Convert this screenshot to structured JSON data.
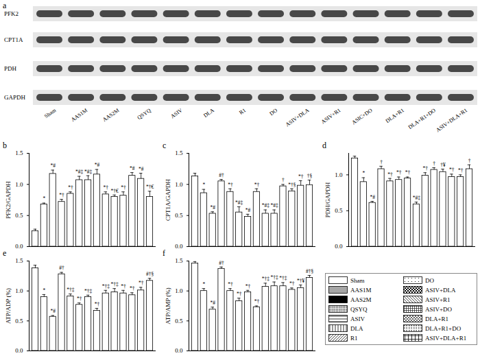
{
  "blot": {
    "label": "a",
    "proteins": [
      "PFK2",
      "CPT1A",
      "PDH",
      "GAPDH"
    ],
    "lanes": [
      "Sham",
      "AAS1M",
      "AAS2M",
      "QSYQ",
      "ASIV",
      "DLA",
      "R1",
      "DO",
      "ASIV+DLA",
      "ASIV+R1",
      "ASIC+DO",
      "DLA+R1",
      "DLA+R1+DO",
      "ASIV+DLA+R1"
    ]
  },
  "chart_data": [
    {
      "type": "bar",
      "title": "b",
      "y_label": "PFK2/GAPDH",
      "tick_labels": "y",
      "categories": [
        "Sham",
        "AAS1M",
        "AAS2M",
        "QSYQ",
        "ASIV",
        "DLA",
        "R1",
        "DO",
        "ASIV+DLA",
        "ASIV+R1",
        "ASIV+DO",
        "DLA+R1",
        "DLA+R1+DO",
        "ASIV+DLA+R1"
      ],
      "colors": [
        "#ffffff",
        "#a6a6a6",
        "#000000",
        "#ffffff",
        "#ffffff",
        "#ffffff",
        "#ffffff",
        "#ffffff",
        "#ffffff",
        "#ffffff",
        "#ffffff",
        "#ffffff",
        "#ffffff",
        "#ffffff"
      ],
      "values": [
        0.25,
        0.68,
        1.17,
        0.72,
        0.85,
        1.07,
        1.07,
        1.16,
        0.84,
        0.8,
        0.82,
        1.14,
        1.09,
        0.8
      ],
      "errors": [
        0.03,
        0.02,
        0.06,
        0.04,
        0.03,
        0.06,
        0.07,
        0.08,
        0.04,
        0.03,
        0.06,
        0.05,
        0.09,
        0.09
      ],
      "annotations": [
        null,
        "*",
        "*#",
        "*†",
        "*†",
        "*#‡",
        "*#‡",
        "*#",
        "*†",
        "*†€",
        "*†",
        "*#",
        "*#",
        "*†€"
      ],
      "ylim": [
        0,
        1.5
      ],
      "yticks": [
        {
          "value": 0,
          "label": "0.0"
        },
        {
          "value": 0.5,
          "label": "0.5"
        },
        {
          "value": 1,
          "label": "1.0"
        },
        {
          "value": 1.5,
          "label": "1.5"
        }
      ]
    },
    {
      "type": "bar",
      "title": "c",
      "y_label": "CPT1A/GAPDH",
      "tick_labels": "y",
      "categories": [
        "Sham",
        "AAS1M",
        "AAS2M",
        "QSYQ",
        "ASIV",
        "DLA",
        "R1",
        "DO",
        "ASIV+DLA",
        "ASIV+R1",
        "ASIV+DO",
        "DLA+R1",
        "DLA+R1+DO",
        "ASIV+DLA+R1"
      ],
      "colors": [
        "#ffffff",
        "#a6a6a6",
        "#000000",
        "#ffffff",
        "#ffffff",
        "#ffffff",
        "#ffffff",
        "#ffffff",
        "#ffffff",
        "#ffffff",
        "#ffffff",
        "#ffffff",
        "#ffffff",
        "#ffffff"
      ],
      "values": [
        1.13,
        0.86,
        0.53,
        1.05,
        0.88,
        0.55,
        0.48,
        0.88,
        0.53,
        0.53,
        0.97,
        0.89,
        0.98,
        0.99
      ],
      "errors": [
        0.05,
        0.06,
        0.03,
        0.03,
        0.05,
        0.09,
        0.04,
        0.05,
        0.06,
        0.06,
        0.03,
        0.04,
        0.08,
        0.08
      ],
      "annotations": [
        null,
        "*",
        "*#",
        "#†",
        "*†",
        "*#‡",
        "*#",
        "*†",
        "*#‡",
        "*#‡",
        "†",
        "*†§",
        "*†",
        "†§"
      ],
      "ylim": [
        0,
        1.5
      ],
      "yticks": [
        {
          "value": 0,
          "label": "0.0"
        },
        {
          "value": 0.5,
          "label": "0.5"
        },
        {
          "value": 1,
          "label": "1.0"
        },
        {
          "value": 1.5,
          "label": "1.5"
        }
      ]
    },
    {
      "type": "bar",
      "title": "d",
      "y_label": "PDH/GAPDH",
      "tick_labels": "y",
      "categories": [
        "Sham",
        "AAS1M",
        "AAS2M",
        "QSYQ",
        "ASIV",
        "DLA",
        "R1",
        "DO",
        "ASIV+DLA",
        "ASIV+R1",
        "ASIV+DO",
        "DLA+R1",
        "DLA+R1+DO",
        "ASIV+DLA+R1"
      ],
      "colors": [
        "#ffffff",
        "#a6a6a6",
        "#000000",
        "#ffffff",
        "#ffffff",
        "#ffffff",
        "#ffffff",
        "#ffffff",
        "#ffffff",
        "#ffffff",
        "#ffffff",
        "#ffffff",
        "#ffffff",
        "#ffffff"
      ],
      "values": [
        1.23,
        0.9,
        0.61,
        1.08,
        0.91,
        0.93,
        0.95,
        0.59,
        0.99,
        1.07,
        1.04,
        0.97,
        0.97,
        1.08
      ],
      "errors": [
        0.03,
        0.06,
        0.02,
        0.04,
        0.04,
        0.04,
        0.02,
        0.03,
        0.04,
        0.03,
        0.04,
        0.04,
        0.03,
        0.06
      ],
      "annotations": [
        null,
        "*",
        "*#",
        "†",
        "*†",
        "*†",
        "*†",
        "*#‡",
        "*†",
        "†",
        "†¥",
        "*†",
        "*†",
        "†"
      ],
      "ylim": [
        0,
        1.3
      ],
      "yticks": [
        {
          "value": 0,
          "label": "0.0"
        },
        {
          "value": 0.5,
          "label": "0.5"
        },
        {
          "value": 1,
          "label": "1.0"
        }
      ]
    },
    {
      "type": "bar",
      "title": "e",
      "y_label": "ATP/ADP (%)",
      "tick_labels": "y",
      "categories": [
        "Sham",
        "AAS1M",
        "AAS2M",
        "QSYQ",
        "ASIV",
        "DLA",
        "R1",
        "DO",
        "ASIV+DLA",
        "ASIV+R1",
        "ASIV+DO",
        "DLA+R1",
        "DLA+R1+DO",
        "ASIV+DLA+R1"
      ],
      "colors": [
        "#ffffff",
        "#a6a6a6",
        "#000000",
        "#ffffff",
        "#ffffff",
        "#ffffff",
        "#ffffff",
        "#ffffff",
        "#ffffff",
        "#ffffff",
        "#ffffff",
        "#ffffff",
        "#ffffff",
        "#ffffff"
      ],
      "values": [
        1.38,
        0.9,
        0.57,
        1.28,
        0.91,
        0.77,
        0.9,
        0.67,
        0.96,
        0.98,
        0.96,
        0.93,
        1.01,
        1.17
      ],
      "errors": [
        0.05,
        0.04,
        0.02,
        0.03,
        0.04,
        0.03,
        0.03,
        0.04,
        0.05,
        0.06,
        0.05,
        0.04,
        0.05,
        0.04
      ],
      "annotations": [
        null,
        "*",
        "*#",
        "#†",
        "*†‡",
        "*†",
        "*†‡",
        "*†",
        "*†‡",
        "*†‡",
        "*†",
        "*†",
        "*†",
        "#†§"
      ],
      "ylim": [
        0,
        1.5
      ],
      "yticks": [
        {
          "value": 0,
          "label": "0.0"
        },
        {
          "value": 0.5,
          "label": "0.5"
        },
        {
          "value": 1,
          "label": "1.0"
        },
        {
          "value": 1.5,
          "label": "1.5"
        }
      ]
    },
    {
      "type": "bar",
      "title": "f",
      "y_label": "ATP/AMP (%)",
      "tick_labels": "y",
      "categories": [
        "Sham",
        "AAS1M",
        "AAS2M",
        "QSYQ",
        "ASIV",
        "DLA",
        "R1",
        "DO",
        "ASIV+DLA",
        "ASIV+R1",
        "ASIV+DO",
        "DLA+R1",
        "DLA+R1+DO",
        "ASIV+DLA+R1"
      ],
      "colors": [
        "#ffffff",
        "#a6a6a6",
        "#000000",
        "#ffffff",
        "#ffffff",
        "#ffffff",
        "#ffffff",
        "#ffffff",
        "#ffffff",
        "#ffffff",
        "#ffffff",
        "#ffffff",
        "#ffffff",
        "#ffffff"
      ],
      "values": [
        1.46,
        1.0,
        0.69,
        1.37,
        1.0,
        0.83,
        0.98,
        0.73,
        1.07,
        1.08,
        1.08,
        1.02,
        1.05,
        1.22
      ],
      "errors": [
        0.03,
        0.04,
        0.04,
        0.03,
        0.04,
        0.05,
        0.03,
        0.02,
        0.06,
        0.07,
        0.06,
        0.03,
        0.05,
        0.04
      ],
      "annotations": [
        null,
        "*",
        "*#",
        "#†",
        "*†",
        "*†",
        "*†",
        "*†",
        "*†‡",
        "*†‡",
        "*†‡",
        "*†",
        "*†¥",
        "#†§"
      ],
      "ylim": [
        0,
        1.5
      ],
      "yticks": [
        {
          "value": 0,
          "label": "0.0"
        },
        {
          "value": 0.5,
          "label": "0.5"
        },
        {
          "value": 1,
          "label": "1.0"
        },
        {
          "value": 1.5,
          "label": "1.5"
        }
      ]
    }
  ]
}
